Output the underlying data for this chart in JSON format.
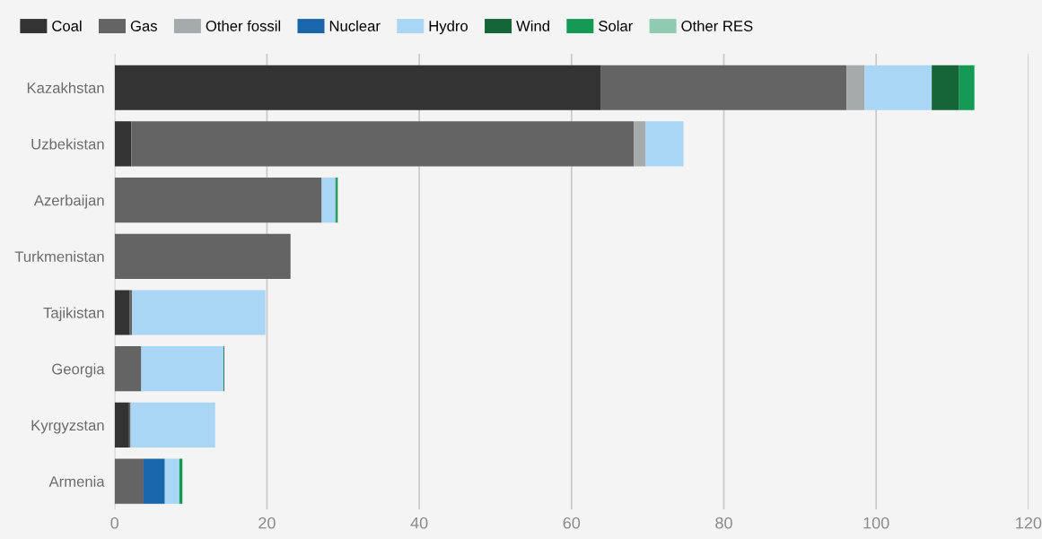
{
  "chart_data": {
    "type": "bar",
    "orientation": "horizontal",
    "stacked": true,
    "categories": [
      "Kazakhstan",
      "Uzbekistan",
      "Azerbaijan",
      "Turkmenistan",
      "Tajikistan",
      "Georgia",
      "Kyrgyzstan",
      "Armenia"
    ],
    "series": [
      {
        "name": "Coal",
        "color": "#333333",
        "values": [
          63.8,
          2.2,
          0,
          0,
          2.0,
          0,
          1.9,
          0
        ]
      },
      {
        "name": "Gas",
        "color": "#646464",
        "values": [
          32.3,
          66.0,
          27.2,
          23.1,
          0.3,
          3.5,
          0.2,
          3.8
        ]
      },
      {
        "name": "Other fossil",
        "color": "#a5aaaa",
        "values": [
          2.4,
          1.5,
          0,
          0,
          0,
          0,
          0,
          0
        ]
      },
      {
        "name": "Nuclear",
        "color": "#1a66aa",
        "values": [
          0,
          0,
          0,
          0,
          0,
          0,
          0,
          2.8
        ]
      },
      {
        "name": "Hydro",
        "color": "#aad6f5",
        "values": [
          8.8,
          5.0,
          1.8,
          0,
          17.5,
          10.8,
          11.1,
          1.9
        ]
      },
      {
        "name": "Wind",
        "color": "#156539",
        "values": [
          3.6,
          0,
          0.1,
          0,
          0,
          0.1,
          0,
          0
        ]
      },
      {
        "name": "Solar",
        "color": "#149a55",
        "values": [
          2.0,
          0,
          0.2,
          0,
          0,
          0,
          0,
          0.4
        ]
      },
      {
        "name": "Other RES",
        "color": "#8fcbb0",
        "values": [
          0,
          0,
          0,
          0,
          0,
          0,
          0,
          0
        ]
      }
    ],
    "xlim": [
      0,
      120
    ],
    "xticks": [
      0,
      20,
      40,
      60,
      80,
      100,
      120
    ],
    "grid": "x",
    "legend": "top left"
  }
}
